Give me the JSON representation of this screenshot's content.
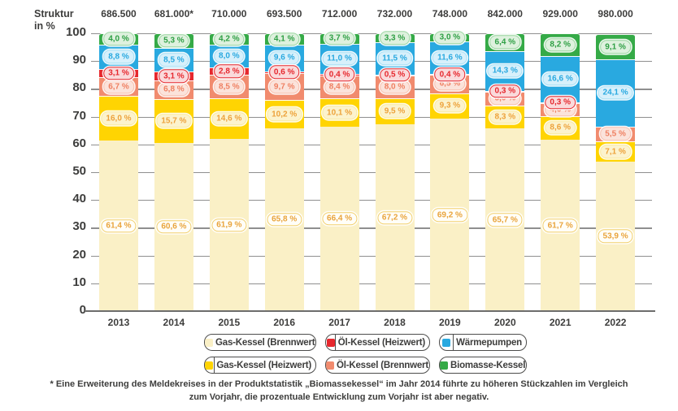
{
  "axis": {
    "title_line1": "Struktur",
    "title_line2": "in %"
  },
  "chart_data": {
    "type": "bar",
    "variant": "stacked-column",
    "title": "Struktur in %",
    "ylabel": "Struktur in %",
    "xlabel": "",
    "ylim": [
      0,
      100
    ],
    "yticks": [
      0,
      10,
      20,
      30,
      40,
      50,
      60,
      70,
      80,
      90,
      100
    ],
    "grid": "horizontal",
    "legend_position": "bottom",
    "categories": [
      "2013",
      "2014",
      "2015",
      "2016",
      "2017",
      "2018",
      "2019",
      "2020",
      "2021",
      "2022"
    ],
    "totals": [
      "686.500",
      "681.000*",
      "710.000",
      "693.500",
      "712.000",
      "732.000",
      "748.000",
      "842.000",
      "929.000",
      "980.000"
    ],
    "series": [
      {
        "name": "Gas-Kessel (Brennwert)",
        "color": "#faf0c6",
        "label_bg": "#fffef8",
        "label_border": "#f2cf6b",
        "label_color": "#e9a43c",
        "values": [
          61.4,
          60.6,
          61.9,
          65.8,
          66.4,
          67.2,
          69.2,
          65.7,
          61.7,
          53.9
        ]
      },
      {
        "name": "Gas-Kessel (Heizwert)",
        "color": "#ffd402",
        "label_bg": "#fcf3cd",
        "label_border": "#f9e9a0",
        "label_color": "#eda23b",
        "values": [
          16.0,
          15.7,
          14.6,
          10.2,
          10.1,
          9.5,
          9.3,
          8.3,
          8.6,
          7.1
        ]
      },
      {
        "name": "Öl-Kessel (Brennwert)",
        "color": "#f18b6e",
        "label_bg": "#fbe3db",
        "label_border": "#f7c0ae",
        "label_color": "#ef8062",
        "values": [
          6.7,
          6.8,
          8.5,
          9.7,
          8.4,
          8.0,
          6.5,
          5.0,
          4.6,
          5.5
        ]
      },
      {
        "name": "Öl-Kessel (Heizwert)",
        "color": "#e6282e",
        "label_bg": "#fadadb",
        "label_border": "#e6282e",
        "label_color": "#e6282e",
        "values": [
          3.1,
          3.1,
          2.8,
          0.6,
          0.4,
          0.5,
          0.4,
          0.3,
          0.3,
          null
        ]
      },
      {
        "name": "Wärmepumpen",
        "color": "#29a9e0",
        "label_bg": "#d7f0fb",
        "label_border": "#a7dff5",
        "label_color": "#29a9e0",
        "values": [
          8.8,
          8.5,
          8.0,
          9.6,
          11.0,
          11.5,
          11.6,
          14.3,
          16.6,
          24.1
        ]
      },
      {
        "name": "Biomasse-Kessel",
        "color": "#35aa47",
        "label_bg": "#def1de",
        "label_border": "#9ad6a0",
        "label_color": "#2e9f44",
        "values": [
          4.0,
          5.3,
          4.2,
          4.1,
          3.7,
          3.3,
          3.0,
          6.4,
          8.2,
          9.1
        ]
      }
    ]
  },
  "legend": {
    "rows": [
      [
        {
          "label": "Gas-Kessel (Brennwert)",
          "color": "#faf0c6"
        },
        {
          "label": "Öl-Kessel (Heizwert)",
          "color": "#e6282e"
        },
        {
          "label": "Wärmepumpen",
          "color": "#29a9e0"
        }
      ],
      [
        {
          "label": "Gas-Kessel (Heizwert)",
          "color": "#ffd402"
        },
        {
          "label": "Öl-Kessel (Brennwert)",
          "color": "#f18b6e"
        },
        {
          "label": "Biomasse-Kessel",
          "color": "#35aa47"
        }
      ]
    ]
  },
  "footnote": "* Eine Erweiterung des Meldekreises in der Produktstatistik „Biomassekessel“ im Jahr 2014 führte zu höheren Stückzahlen im Vergleich zum Vorjahr, die prozentuale Entwicklung zum Vorjahr ist aber negativ."
}
